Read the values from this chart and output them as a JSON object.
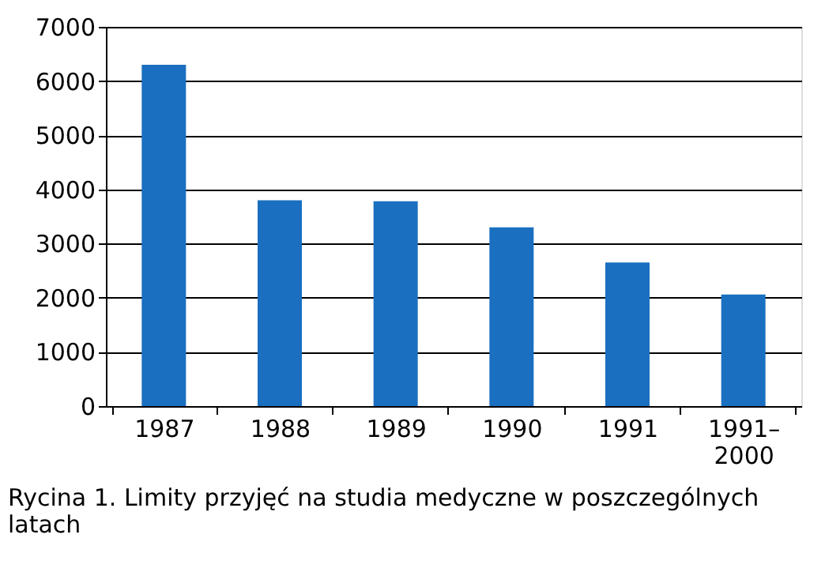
{
  "chart_data": {
    "type": "bar",
    "categories": [
      "1987",
      "1988",
      "1989",
      "1990",
      "1991",
      "1991–2000"
    ],
    "values": [
      6300,
      3800,
      3780,
      3300,
      2650,
      2060
    ],
    "color": "#1a6fc0",
    "ylim": [
      0,
      7000
    ],
    "yticks": [
      0,
      1000,
      2000,
      3000,
      4000,
      5000,
      6000,
      7000
    ],
    "grid": "y",
    "annotations": [
      "Rycina 1. Limity przyjęć na studia medyczne w poszczególnych latach"
    ]
  }
}
